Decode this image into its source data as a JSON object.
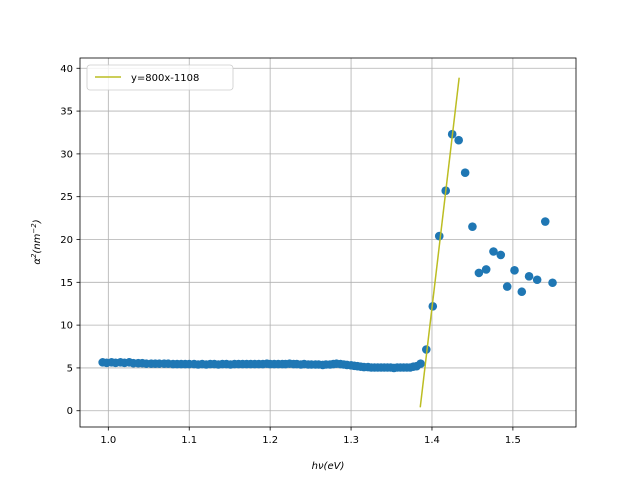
{
  "chart_data": {
    "type": "scatter",
    "xlabel": "hν(eV)",
    "ylabel_base": "α",
    "ylabel_sup1": "2",
    "ylabel_unit": "(nm",
    "ylabel_sup2": "−2",
    "ylabel_close": ")",
    "xlim": [
      0.965,
      1.578
    ],
    "ylim": [
      -1.9,
      41.2
    ],
    "x_ticks": [
      1.0,
      1.1,
      1.2,
      1.3,
      1.4,
      1.5
    ],
    "x_tick_labels": [
      "1.0",
      "1.1",
      "1.2",
      "1.3",
      "1.4",
      "1.5"
    ],
    "y_ticks": [
      0,
      5,
      10,
      15,
      20,
      25,
      30,
      35,
      40
    ],
    "y_tick_labels": [
      "0",
      "5",
      "10",
      "15",
      "20",
      "25",
      "30",
      "35",
      "40"
    ],
    "grid": true,
    "legend_position": "upper-left",
    "colors": {
      "scatter": "#1f77b4",
      "fit": "#bcbd22"
    },
    "series": [
      {
        "kind": "scatter",
        "points": [
          [
            0.993,
            5.65
          ],
          [
            0.998,
            5.6
          ],
          [
            1.004,
            5.65
          ],
          [
            1.009,
            5.6
          ],
          [
            1.015,
            5.65
          ],
          [
            1.02,
            5.6
          ],
          [
            1.026,
            5.65
          ],
          [
            1.031,
            5.55
          ],
          [
            1.037,
            5.55
          ],
          [
            1.042,
            5.55
          ],
          [
            1.047,
            5.5
          ],
          [
            1.053,
            5.5
          ],
          [
            1.058,
            5.5
          ],
          [
            1.063,
            5.5
          ],
          [
            1.069,
            5.5
          ],
          [
            1.074,
            5.5
          ],
          [
            1.08,
            5.45
          ],
          [
            1.085,
            5.45
          ],
          [
            1.09,
            5.45
          ],
          [
            1.095,
            5.45
          ],
          [
            1.1,
            5.45
          ],
          [
            1.106,
            5.45
          ],
          [
            1.111,
            5.4
          ],
          [
            1.116,
            5.45
          ],
          [
            1.121,
            5.4
          ],
          [
            1.126,
            5.45
          ],
          [
            1.131,
            5.45
          ],
          [
            1.136,
            5.4
          ],
          [
            1.141,
            5.45
          ],
          [
            1.146,
            5.45
          ],
          [
            1.151,
            5.4
          ],
          [
            1.156,
            5.45
          ],
          [
            1.161,
            5.45
          ],
          [
            1.166,
            5.45
          ],
          [
            1.171,
            5.45
          ],
          [
            1.176,
            5.45
          ],
          [
            1.181,
            5.45
          ],
          [
            1.186,
            5.45
          ],
          [
            1.191,
            5.45
          ],
          [
            1.196,
            5.5
          ],
          [
            1.2,
            5.45
          ],
          [
            1.205,
            5.45
          ],
          [
            1.21,
            5.45
          ],
          [
            1.215,
            5.45
          ],
          [
            1.219,
            5.45
          ],
          [
            1.224,
            5.5
          ],
          [
            1.229,
            5.45
          ],
          [
            1.233,
            5.45
          ],
          [
            1.238,
            5.4
          ],
          [
            1.242,
            5.45
          ],
          [
            1.247,
            5.4
          ],
          [
            1.251,
            5.4
          ],
          [
            1.256,
            5.4
          ],
          [
            1.26,
            5.4
          ],
          [
            1.265,
            5.35
          ],
          [
            1.269,
            5.4
          ],
          [
            1.274,
            5.4
          ],
          [
            1.278,
            5.45
          ],
          [
            1.282,
            5.5
          ],
          [
            1.287,
            5.45
          ],
          [
            1.291,
            5.4
          ],
          [
            1.295,
            5.35
          ],
          [
            1.3,
            5.3
          ],
          [
            1.304,
            5.25
          ],
          [
            1.308,
            5.2
          ],
          [
            1.312,
            5.15
          ],
          [
            1.316,
            5.1
          ],
          [
            1.321,
            5.1
          ],
          [
            1.325,
            5.05
          ],
          [
            1.329,
            5.05
          ],
          [
            1.333,
            5.05
          ],
          [
            1.337,
            5.05
          ],
          [
            1.341,
            5.05
          ],
          [
            1.345,
            5.05
          ],
          [
            1.349,
            5.05
          ],
          [
            1.353,
            5.0
          ],
          [
            1.357,
            5.05
          ],
          [
            1.361,
            5.05
          ],
          [
            1.365,
            5.05
          ],
          [
            1.369,
            5.05
          ],
          [
            1.373,
            5.05
          ],
          [
            1.377,
            5.15
          ],
          [
            1.381,
            5.2
          ],
          [
            1.386,
            5.5
          ],
          [
            1.393,
            7.15
          ],
          [
            1.401,
            12.2
          ],
          [
            1.409,
            20.4
          ],
          [
            1.417,
            25.7
          ],
          [
            1.425,
            32.3
          ],
          [
            1.433,
            31.6
          ],
          [
            1.441,
            27.8
          ],
          [
            1.45,
            21.5
          ],
          [
            1.458,
            16.1
          ],
          [
            1.467,
            16.5
          ],
          [
            1.476,
            18.6
          ],
          [
            1.485,
            18.2
          ],
          [
            1.493,
            14.5
          ],
          [
            1.502,
            16.4
          ],
          [
            1.511,
            13.9
          ],
          [
            1.52,
            15.7
          ],
          [
            1.53,
            15.3
          ],
          [
            1.54,
            22.1
          ],
          [
            1.549,
            14.95
          ]
        ]
      },
      {
        "kind": "line",
        "name": "y=800x-1108",
        "points": [
          [
            1.3855,
            0.4
          ],
          [
            1.4336,
            38.9
          ]
        ]
      }
    ]
  }
}
